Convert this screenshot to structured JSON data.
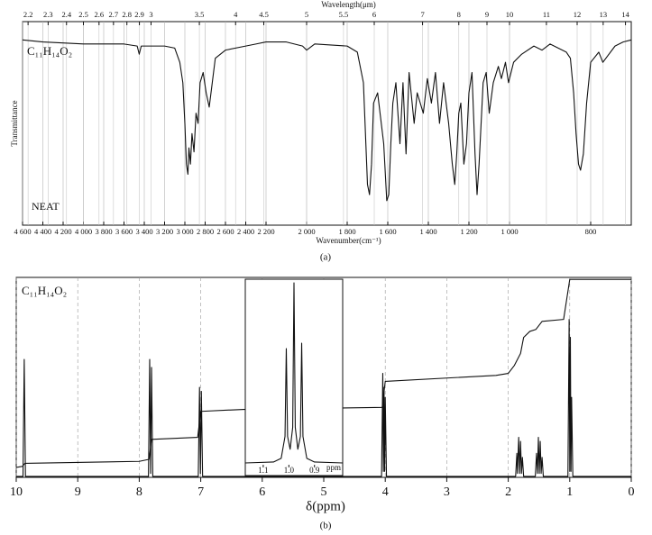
{
  "chart_data": [
    {
      "type": "line",
      "formula": "C₁₁H₁₄O₂",
      "annotation": "NEAT",
      "caption": "(a)",
      "xlabel": "Wavenumber(cm⁻¹)",
      "x2label": "Wavelength(μm)",
      "ylabel": "Transmittance",
      "xlim": [
        4600,
        700
      ],
      "xbreaks": [
        2200,
        1000
      ],
      "xticks": [
        {
          "value": 4600,
          "label": "4 600"
        },
        {
          "value": 4400,
          "label": "4 400"
        },
        {
          "value": 4200,
          "label": "4 200"
        },
        {
          "value": 4000,
          "label": "4 000"
        },
        {
          "value": 3800,
          "label": "3 800"
        },
        {
          "value": 3600,
          "label": "3 600"
        },
        {
          "value": 3400,
          "label": "3 400"
        },
        {
          "value": 3200,
          "label": "3 200"
        },
        {
          "value": 3000,
          "label": "3 000"
        },
        {
          "value": 2800,
          "label": "2 800"
        },
        {
          "value": 2600,
          "label": "2 600"
        },
        {
          "value": 2400,
          "label": "2 400"
        },
        {
          "value": 2200,
          "label": "2 200"
        },
        {
          "value": 2000,
          "label": "2 000"
        },
        {
          "value": 1800,
          "label": "1 800"
        },
        {
          "value": 1600,
          "label": "1 600"
        },
        {
          "value": 1400,
          "label": "1 400"
        },
        {
          "value": 1200,
          "label": "1 200"
        },
        {
          "value": 1000,
          "label": "1 000"
        },
        800
      ],
      "x2ticks": [
        2.2,
        2.3,
        2.4,
        2.5,
        2.6,
        2.7,
        2.8,
        2.9,
        3,
        3.5,
        4,
        4.5,
        5,
        5.5,
        6,
        7,
        8,
        9,
        10,
        11,
        12,
        13,
        14
      ],
      "ylim": [
        0,
        100
      ],
      "grid": true,
      "color": "#111111",
      "x": [
        4600,
        4400,
        4000,
        3600,
        3470,
        3450,
        3430,
        3200,
        3100,
        3050,
        3020,
        3000,
        2985,
        2970,
        2960,
        2945,
        2930,
        2910,
        2890,
        2870,
        2850,
        2820,
        2790,
        2760,
        2730,
        2700,
        2600,
        2400,
        2300,
        2200,
        2100,
        2020,
        2000,
        1960,
        1800,
        1750,
        1720,
        1700,
        1690,
        1680,
        1670,
        1650,
        1620,
        1605,
        1595,
        1585,
        1575,
        1560,
        1540,
        1525,
        1510,
        1495,
        1470,
        1455,
        1425,
        1405,
        1385,
        1365,
        1345,
        1325,
        1300,
        1282,
        1270,
        1260,
        1250,
        1240,
        1225,
        1212,
        1200,
        1185,
        1170,
        1160,
        1150,
        1130,
        1115,
        1100,
        1080,
        1055,
        1040,
        1020,
        1005,
        990,
        970,
        940,
        920,
        900,
        860,
        850,
        842,
        836,
        830,
        825,
        818,
        810,
        800,
        780,
        770,
        740,
        720,
        700
      ],
      "values": [
        91,
        90,
        89,
        89,
        88,
        84,
        88,
        88,
        87,
        80,
        70,
        50,
        30,
        25,
        38,
        30,
        45,
        36,
        55,
        50,
        70,
        75,
        65,
        58,
        70,
        82,
        86,
        88,
        89,
        90,
        90,
        88,
        86,
        89,
        88,
        85,
        70,
        20,
        15,
        30,
        60,
        65,
        40,
        12,
        15,
        40,
        60,
        70,
        40,
        70,
        35,
        75,
        50,
        65,
        55,
        72,
        60,
        75,
        50,
        70,
        50,
        30,
        20,
        35,
        55,
        60,
        30,
        40,
        65,
        75,
        35,
        15,
        30,
        70,
        75,
        55,
        70,
        78,
        72,
        80,
        70,
        80,
        84,
        88,
        86,
        89,
        85,
        82,
        65,
        45,
        30,
        27,
        35,
        60,
        80,
        85,
        80,
        88,
        90,
        91
      ]
    },
    {
      "type": "line",
      "formula": "C₁₁H₁₄O₂",
      "caption": "(b)",
      "xlabel": "δ(ppm)",
      "xlim": [
        10,
        0
      ],
      "xticks": [
        10,
        9,
        8,
        7,
        6,
        5,
        4,
        3,
        2,
        1,
        0
      ],
      "ylim": [
        0,
        100
      ],
      "grid": true,
      "series": [
        {
          "color": "#111111",
          "x": [
            10,
            9.89,
            9.87,
            9.85,
            7.85,
            7.83,
            7.815,
            7.8,
            7.78,
            7.04,
            7.02,
            7.005,
            6.99,
            6.97,
            4.06,
            4.04,
            4.03,
            4.02,
            4.01,
            4,
            3.98,
            1.88,
            1.86,
            1.85,
            1.83,
            1.815,
            1.8,
            1.785,
            1.77,
            1.75,
            1.56,
            1.54,
            1.525,
            1.51,
            1.495,
            1.48,
            1.465,
            1.45,
            1.43,
            1.03,
            1.01,
            1,
            0.99,
            0.98,
            0.97,
            0.95,
            0
          ],
          "values": [
            0.5,
            0.5,
            59,
            0.5,
            0.5,
            59,
            2,
            55,
            0.5,
            0.5,
            45,
            2,
            43,
            0.5,
            0.5,
            52,
            3,
            45,
            3,
            40,
            0.5,
            0.5,
            12,
            2,
            20,
            2,
            18,
            2,
            10,
            0.5,
            0.5,
            12,
            2,
            20,
            2,
            18,
            2,
            10,
            0.5,
            0.5,
            79,
            3,
            70,
            3,
            40,
            0.5,
            0.5
          ]
        },
        {
          "color": "#111111",
          "x": [
            10,
            9.9,
            9.86,
            8,
            7.84,
            7.8,
            7.05,
            7,
            6.3,
            4.05,
            4,
            2.2,
            2,
            1.9,
            1.8,
            1.75,
            1.65,
            1.55,
            1.45,
            1.1,
            1,
            0
          ],
          "values": [
            5,
            5.5,
            7,
            8,
            9,
            19,
            20,
            33,
            34,
            35,
            48,
            51,
            52,
            56,
            62,
            70,
            73,
            74,
            78,
            79,
            99,
            99
          ]
        }
      ]
    },
    {
      "type": "line",
      "xlabel": "ppm",
      "xlim": [
        1.17,
        0.79
      ],
      "xticks": [
        1.1,
        {
          "value": 1,
          "label": "1.0"
        },
        0.9
      ],
      "ylim": [
        0,
        100
      ],
      "color": "#111111",
      "x": [
        1.17,
        1.06,
        1.03,
        1.015,
        1.01,
        1.005,
        0.995,
        0.985,
        0.98,
        0.975,
        0.965,
        0.955,
        0.95,
        0.945,
        0.93,
        0.9,
        0.79
      ],
      "values": [
        0.5,
        1,
        3,
        15,
        63,
        15,
        8,
        20,
        99,
        20,
        8,
        15,
        66,
        15,
        3,
        1,
        0.5
      ]
    }
  ]
}
